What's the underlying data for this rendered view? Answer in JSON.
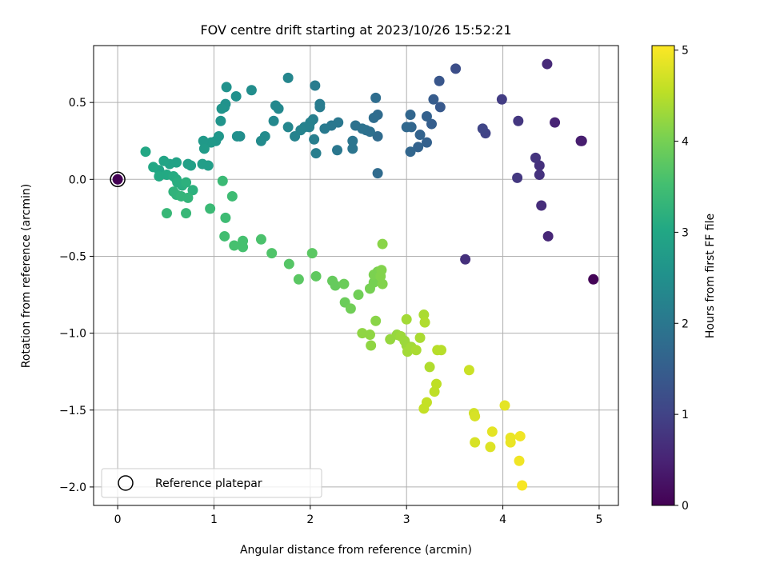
{
  "chart_data": {
    "type": "scatter",
    "title": "FOV centre drift starting at 2023/10/26 15:52:21",
    "xlabel": "Angular distance from reference (arcmin)",
    "ylabel": "Rotation from reference (arcmin)",
    "xlim": [
      -0.25,
      5.2
    ],
    "ylim": [
      -2.12,
      0.87
    ],
    "xticks": [
      0,
      1,
      2,
      3,
      4,
      5
    ],
    "yticks": [
      -2.0,
      -1.5,
      -1.0,
      -0.5,
      0.0,
      0.5
    ],
    "xtick_labels": [
      "0",
      "1",
      "2",
      "3",
      "4",
      "5"
    ],
    "ytick_labels": [
      "−2.0",
      "−1.5",
      "−1.0",
      "−0.5",
      "0.0",
      "0.5"
    ],
    "grid": true,
    "legend": {
      "placement": "lower-left",
      "entries": [
        "Reference platepar"
      ]
    },
    "colorbar": {
      "label": "Hours from first FF file",
      "range": [
        0,
        5.05
      ],
      "ticks": [
        0,
        1,
        2,
        3,
        4,
        5
      ],
      "tick_labels": [
        "0",
        "1",
        "2",
        "3",
        "4",
        "5"
      ],
      "colormap": "viridis"
    },
    "reference_point": {
      "name": "Reference platepar",
      "x": 0.0,
      "y": 0.0
    },
    "series": [
      {
        "columns": [
          "x",
          "y",
          "hours"
        ],
        "points": [
          [
            4.94,
            -0.65,
            0.05
          ],
          [
            4.82,
            0.25,
            0.4
          ],
          [
            4.81,
            0.25,
            0.42
          ],
          [
            4.54,
            0.37,
            0.5
          ],
          [
            4.47,
            -0.37,
            0.55
          ],
          [
            4.46,
            0.75,
            0.6
          ],
          [
            4.4,
            -0.17,
            0.65
          ],
          [
            4.38,
            0.09,
            0.7
          ],
          [
            4.38,
            0.03,
            0.72
          ],
          [
            4.34,
            0.14,
            0.75
          ],
          [
            4.16,
            0.38,
            0.8
          ],
          [
            4.15,
            0.01,
            0.82
          ],
          [
            3.99,
            0.52,
            0.9
          ],
          [
            3.61,
            -0.52,
            0.7
          ],
          [
            3.82,
            0.3,
            1.0
          ],
          [
            3.79,
            0.33,
            1.05
          ],
          [
            3.51,
            0.72,
            1.2
          ],
          [
            3.34,
            0.64,
            1.35
          ],
          [
            3.35,
            0.47,
            1.4
          ],
          [
            3.28,
            0.52,
            1.45
          ],
          [
            3.26,
            0.36,
            1.5
          ],
          [
            3.21,
            0.41,
            1.55
          ],
          [
            3.21,
            0.24,
            1.55
          ],
          [
            3.14,
            0.29,
            1.6
          ],
          [
            3.12,
            0.21,
            1.6
          ],
          [
            3.04,
            0.42,
            1.65
          ],
          [
            3.05,
            0.34,
            1.65
          ],
          [
            3.04,
            0.18,
            1.65
          ],
          [
            3.0,
            0.34,
            1.7
          ],
          [
            2.7,
            0.04,
            1.75
          ],
          [
            2.7,
            0.28,
            1.75
          ],
          [
            2.7,
            0.42,
            1.75
          ],
          [
            2.68,
            0.53,
            1.8
          ],
          [
            2.66,
            0.4,
            1.8
          ],
          [
            2.62,
            0.31,
            1.85
          ],
          [
            2.58,
            0.32,
            1.85
          ],
          [
            2.54,
            0.33,
            1.9
          ],
          [
            2.47,
            0.35,
            1.9
          ],
          [
            2.44,
            0.25,
            1.95
          ],
          [
            2.44,
            0.2,
            1.95
          ],
          [
            2.28,
            0.19,
            2.0
          ],
          [
            2.29,
            0.37,
            2.0
          ],
          [
            2.22,
            0.35,
            2.0
          ],
          [
            2.15,
            0.33,
            2.05
          ],
          [
            2.1,
            0.47,
            2.1
          ],
          [
            2.1,
            0.49,
            2.1
          ],
          [
            2.05,
            0.61,
            2.1
          ],
          [
            2.06,
            0.17,
            2.15
          ],
          [
            2.04,
            0.26,
            2.15
          ],
          [
            2.03,
            0.39,
            2.15
          ],
          [
            2.0,
            0.37,
            2.2
          ],
          [
            1.99,
            0.34,
            2.2
          ],
          [
            1.94,
            0.34,
            2.2
          ],
          [
            1.9,
            0.32,
            2.25
          ],
          [
            1.84,
            0.28,
            2.25
          ],
          [
            1.77,
            0.34,
            2.3
          ],
          [
            1.77,
            0.66,
            2.3
          ],
          [
            1.67,
            0.46,
            2.35
          ],
          [
            1.64,
            0.48,
            2.35
          ],
          [
            1.62,
            0.38,
            2.35
          ],
          [
            1.53,
            0.28,
            2.4
          ],
          [
            1.49,
            0.25,
            2.4
          ],
          [
            1.39,
            0.58,
            2.45
          ],
          [
            1.27,
            0.28,
            2.45
          ],
          [
            1.24,
            0.28,
            2.5
          ],
          [
            1.23,
            0.54,
            2.5
          ],
          [
            1.13,
            0.6,
            2.55
          ],
          [
            1.12,
            0.49,
            2.55
          ],
          [
            1.11,
            0.47,
            2.55
          ],
          [
            1.08,
            0.46,
            2.6
          ],
          [
            1.07,
            0.38,
            2.6
          ],
          [
            1.05,
            0.28,
            2.65
          ],
          [
            1.02,
            0.25,
            2.65
          ],
          [
            0.97,
            0.24,
            2.7
          ],
          [
            0.89,
            0.25,
            2.7
          ],
          [
            0.9,
            0.2,
            2.75
          ],
          [
            0.94,
            0.09,
            2.8
          ],
          [
            0.88,
            0.1,
            2.8
          ],
          [
            0.76,
            0.09,
            2.85
          ],
          [
            0.73,
            0.1,
            2.85
          ],
          [
            0.61,
            0.11,
            2.9
          ],
          [
            0.54,
            0.1,
            2.9
          ],
          [
            0.48,
            0.12,
            2.95
          ],
          [
            0.43,
            0.06,
            2.95
          ],
          [
            0.37,
            0.08,
            3.0
          ],
          [
            0.29,
            0.18,
            3.0
          ],
          [
            0.43,
            0.02,
            3.05
          ],
          [
            0.51,
            0.03,
            3.05
          ],
          [
            0.58,
            0.02,
            3.1
          ],
          [
            0.61,
            0.0,
            3.1
          ],
          [
            0.62,
            -0.02,
            3.15
          ],
          [
            0.67,
            -0.04,
            3.15
          ],
          [
            0.71,
            -0.02,
            3.2
          ],
          [
            0.78,
            -0.07,
            3.2
          ],
          [
            0.58,
            -0.08,
            3.25
          ],
          [
            0.61,
            -0.1,
            3.25
          ],
          [
            0.66,
            -0.11,
            3.3
          ],
          [
            0.73,
            -0.12,
            3.3
          ],
          [
            0.51,
            -0.22,
            3.35
          ],
          [
            0.71,
            -0.22,
            3.35
          ],
          [
            0.96,
            -0.19,
            3.4
          ],
          [
            1.09,
            -0.01,
            3.4
          ],
          [
            1.19,
            -0.11,
            3.45
          ],
          [
            1.12,
            -0.25,
            3.45
          ],
          [
            1.11,
            -0.37,
            3.5
          ],
          [
            1.21,
            -0.43,
            3.55
          ],
          [
            1.3,
            -0.4,
            3.55
          ],
          [
            1.3,
            -0.44,
            3.55
          ],
          [
            1.49,
            -0.39,
            3.6
          ],
          [
            1.6,
            -0.48,
            3.65
          ],
          [
            1.78,
            -0.55,
            3.7
          ],
          [
            1.88,
            -0.65,
            3.75
          ],
          [
            2.02,
            -0.48,
            3.75
          ],
          [
            2.06,
            -0.63,
            3.8
          ],
          [
            2.23,
            -0.66,
            3.85
          ],
          [
            2.26,
            -0.69,
            3.85
          ],
          [
            2.35,
            -0.68,
            3.9
          ],
          [
            2.36,
            -0.8,
            3.9
          ],
          [
            2.42,
            -0.84,
            3.95
          ],
          [
            2.5,
            -0.75,
            3.95
          ],
          [
            2.62,
            -0.71,
            4.0
          ],
          [
            2.66,
            -0.67,
            4.0
          ],
          [
            2.66,
            -0.62,
            4.05
          ],
          [
            2.7,
            -0.6,
            4.05
          ],
          [
            2.73,
            -0.63,
            4.1
          ],
          [
            2.74,
            -0.59,
            4.1
          ],
          [
            2.75,
            -0.68,
            4.1
          ],
          [
            2.75,
            -0.42,
            4.15
          ],
          [
            2.68,
            -0.92,
            4.15
          ],
          [
            2.54,
            -1.0,
            4.2
          ],
          [
            2.62,
            -1.01,
            4.2
          ],
          [
            2.63,
            -1.08,
            4.2
          ],
          [
            2.83,
            -1.04,
            4.25
          ],
          [
            2.9,
            -1.01,
            4.25
          ],
          [
            2.94,
            -1.02,
            4.3
          ],
          [
            2.98,
            -1.05,
            4.3
          ],
          [
            3.0,
            -1.08,
            4.3
          ],
          [
            3.0,
            -0.91,
            4.35
          ],
          [
            3.01,
            -1.12,
            4.35
          ],
          [
            3.05,
            -1.09,
            4.35
          ],
          [
            3.1,
            -1.11,
            4.4
          ],
          [
            3.14,
            -1.03,
            4.4
          ],
          [
            3.18,
            -0.88,
            4.4
          ],
          [
            3.19,
            -0.93,
            4.45
          ],
          [
            3.24,
            -1.22,
            4.45
          ],
          [
            3.32,
            -1.11,
            4.5
          ],
          [
            3.36,
            -1.11,
            4.5
          ],
          [
            3.31,
            -1.33,
            4.55
          ],
          [
            3.29,
            -1.38,
            4.55
          ],
          [
            3.21,
            -1.45,
            4.6
          ],
          [
            3.18,
            -1.49,
            4.6
          ],
          [
            3.65,
            -1.24,
            4.65
          ],
          [
            3.7,
            -1.52,
            4.7
          ],
          [
            3.71,
            -1.54,
            4.75
          ],
          [
            3.71,
            -1.71,
            4.75
          ],
          [
            3.87,
            -1.74,
            4.8
          ],
          [
            3.89,
            -1.64,
            4.85
          ],
          [
            4.02,
            -1.47,
            4.85
          ],
          [
            4.08,
            -1.68,
            4.9
          ],
          [
            4.08,
            -1.71,
            4.9
          ],
          [
            4.17,
            -1.83,
            4.95
          ],
          [
            4.18,
            -1.67,
            4.95
          ],
          [
            4.2,
            -1.99,
            5.0
          ]
        ]
      }
    ]
  }
}
